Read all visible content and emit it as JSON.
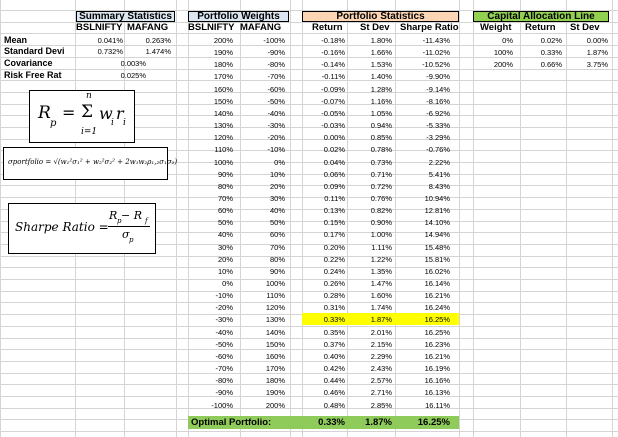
{
  "summary": {
    "title": "Summary Statistics",
    "columns": [
      "BSLNIFTY",
      "MAFANG"
    ],
    "rows": [
      {
        "label": "Mean",
        "values": [
          "0.041%",
          "0.263%"
        ]
      },
      {
        "label": "Standard Devi",
        "values": [
          "0.732%",
          "1.474%"
        ]
      },
      {
        "label": "Covariance",
        "values": [
          "0.003%"
        ]
      },
      {
        "label": "Risk Free Rat",
        "values": [
          "0.025%"
        ]
      }
    ]
  },
  "weights": {
    "title": "Portfolio Weights",
    "columns": [
      "BSLNIFTY",
      "MAFANG"
    ],
    "rows": [
      [
        "200%",
        "-100%"
      ],
      [
        "190%",
        "-90%"
      ],
      [
        "180%",
        "-80%"
      ],
      [
        "170%",
        "-70%"
      ],
      [
        "160%",
        "-60%"
      ],
      [
        "150%",
        "-50%"
      ],
      [
        "140%",
        "-40%"
      ],
      [
        "130%",
        "-30%"
      ],
      [
        "120%",
        "-20%"
      ],
      [
        "110%",
        "-10%"
      ],
      [
        "100%",
        "0%"
      ],
      [
        "90%",
        "10%"
      ],
      [
        "80%",
        "20%"
      ],
      [
        "70%",
        "30%"
      ],
      [
        "60%",
        "40%"
      ],
      [
        "50%",
        "50%"
      ],
      [
        "40%",
        "60%"
      ],
      [
        "30%",
        "70%"
      ],
      [
        "20%",
        "80%"
      ],
      [
        "10%",
        "90%"
      ],
      [
        "0%",
        "100%"
      ],
      [
        "-10%",
        "110%"
      ],
      [
        "-20%",
        "120%"
      ],
      [
        "-30%",
        "130%"
      ],
      [
        "-40%",
        "140%"
      ],
      [
        "-50%",
        "150%"
      ],
      [
        "-60%",
        "160%"
      ],
      [
        "-70%",
        "170%"
      ],
      [
        "-80%",
        "180%"
      ],
      [
        "-90%",
        "190%"
      ],
      [
        "-100%",
        "200%"
      ]
    ]
  },
  "stats": {
    "title": "Portfolio Statistics",
    "columns": [
      "Return",
      "St Dev",
      "Sharpe Ratio"
    ],
    "rows": [
      [
        "-0.18%",
        "1.80%",
        "-11.43%"
      ],
      [
        "-0.16%",
        "1.66%",
        "-11.02%"
      ],
      [
        "-0.14%",
        "1.53%",
        "-10.52%"
      ],
      [
        "-0.11%",
        "1.40%",
        "-9.90%"
      ],
      [
        "-0.09%",
        "1.28%",
        "-9.14%"
      ],
      [
        "-0.07%",
        "1.16%",
        "-8.16%"
      ],
      [
        "-0.05%",
        "1.05%",
        "-6.92%"
      ],
      [
        "-0.03%",
        "0.94%",
        "-5.33%"
      ],
      [
        "0.00%",
        "0.85%",
        "-3.29%"
      ],
      [
        "0.02%",
        "0.78%",
        "-0.76%"
      ],
      [
        "0.04%",
        "0.73%",
        "2.22%"
      ],
      [
        "0.06%",
        "0.71%",
        "5.41%"
      ],
      [
        "0.09%",
        "0.72%",
        "8.43%"
      ],
      [
        "0.11%",
        "0.76%",
        "10.94%"
      ],
      [
        "0.13%",
        "0.82%",
        "12.81%"
      ],
      [
        "0.15%",
        "0.90%",
        "14.10%"
      ],
      [
        "0.17%",
        "1.00%",
        "14.94%"
      ],
      [
        "0.20%",
        "1.11%",
        "15.48%"
      ],
      [
        "0.22%",
        "1.22%",
        "15.81%"
      ],
      [
        "0.24%",
        "1.35%",
        "16.02%"
      ],
      [
        "0.26%",
        "1.47%",
        "16.14%"
      ],
      [
        "0.28%",
        "1.60%",
        "16.21%"
      ],
      [
        "0.31%",
        "1.74%",
        "16.24%"
      ],
      [
        "0.33%",
        "1.87%",
        "16.25%"
      ],
      [
        "0.35%",
        "2.01%",
        "16.25%"
      ],
      [
        "0.37%",
        "2.15%",
        "16.23%"
      ],
      [
        "0.40%",
        "2.29%",
        "16.21%"
      ],
      [
        "0.42%",
        "2.43%",
        "16.19%"
      ],
      [
        "0.44%",
        "2.57%",
        "16.16%"
      ],
      [
        "0.46%",
        "2.71%",
        "16.13%"
      ],
      [
        "0.48%",
        "2.85%",
        "16.11%"
      ]
    ],
    "highlight_row": 23
  },
  "cal": {
    "title": "Capital Allocation Line",
    "columns": [
      "Weight",
      "Return",
      "St Dev"
    ],
    "rows": [
      [
        "0%",
        "0.02%",
        "0.00%"
      ],
      [
        "100%",
        "0.33%",
        "1.87%"
      ],
      [
        "200%",
        "0.66%",
        "3.75%"
      ]
    ]
  },
  "optimal": {
    "label": "Optimal Portfolio:",
    "values": [
      "0.33%",
      "1.87%",
      "16.25%"
    ]
  },
  "formulas": {
    "portfolio_return": {
      "lhs": "R",
      "lhs_sub": "p",
      "eq": "=",
      "sigma": "Σ",
      "top": "n",
      "bottom": "i=1",
      "term": "w",
      "term_sub": "i",
      "term2": "r",
      "term2_sub": "i"
    },
    "portfolio_sigma": {
      "text": "σportfolio = √(w₁²σ₁² + w₂²σ₂² + 2w₁w₂ρ₁,₂σ₁σ₂)"
    },
    "sharpe": {
      "lhs": "Sharpe Ratio =",
      "num": "R",
      "num_sub": "p",
      "num_minus": " − R",
      "num_sub2": "f",
      "den": "σ",
      "den_sub": "p"
    }
  },
  "colors": {
    "summary_header": "#dce6f1",
    "weights_header": "#dce6f1",
    "stats_header": "#fcd5b4",
    "cal_header": "#92d050",
    "highlight": "#ffff00",
    "optimal": "#8fcb5a"
  }
}
